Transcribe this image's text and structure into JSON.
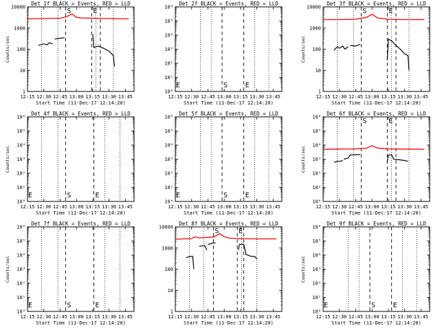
{
  "chart_data": [
    {
      "type": "line",
      "title": "Det 1f BLACK = Events, RED = LLD",
      "xlabel": "Start Time (11-Dec-17 12:14:20)",
      "ylabel": "Counts/sec",
      "yscale": "log",
      "xlim": [
        "12:15",
        "13:53"
      ],
      "ylim": [
        1,
        10000
      ],
      "x_ticks": [
        "12:15",
        "12:30",
        "12:45",
        "13:00",
        "13:15",
        "13:30",
        "13:45"
      ],
      "y_ticks": [
        "1",
        "10",
        "100",
        "1000",
        "10000"
      ],
      "vlines": [
        {
          "x": "12:50",
          "label": "S",
          "style": "dashed"
        },
        {
          "x": "13:14",
          "label": "E",
          "style": "dashed"
        },
        {
          "x": "13:22",
          "label": "",
          "style": "dashed"
        }
      ],
      "dotted_lines": [
        "12:28",
        "12:43",
        "13:18",
        "13:34"
      ],
      "markers_top": true,
      "series": [
        {
          "name": "RED = LLD",
          "color": "#ff0000",
          "points": [
            [
              "12:15",
              2700
            ],
            [
              "12:30",
              2800
            ],
            [
              "12:45",
              2900
            ],
            [
              "12:50",
              3300
            ],
            [
              "12:56",
              4600
            ],
            [
              "13:00",
              3200
            ],
            [
              "13:05",
              3000
            ],
            [
              "13:15",
              2900
            ],
            [
              "13:30",
              2800
            ],
            [
              "13:48",
              2700
            ]
          ]
        },
        {
          "name": "BLACK = Events",
          "color": "#000000",
          "segments": [
            [
              [
                "12:25",
                150
              ],
              [
                "12:30",
                180
              ],
              [
                "12:33",
                160
              ],
              [
                "12:35",
                200
              ],
              [
                "12:38",
                180
              ]
            ],
            [
              [
                "12:40",
                300
              ],
              [
                "12:45",
                330
              ],
              [
                "12:49",
                350
              ]
            ],
            [
              [
                "13:15",
                500
              ],
              [
                "13:16",
                120
              ],
              [
                "13:20",
                140
              ],
              [
                "13:25",
                110
              ],
              [
                "13:30",
                80
              ],
              [
                "13:34",
                50
              ],
              [
                "13:35",
                15
              ]
            ]
          ]
        }
      ]
    },
    {
      "type": "line",
      "title": "Det 2f BLACK = Events, RED = LLD",
      "xlabel": "Start Time (11-Dec-17 12:14:20)",
      "ylabel": "",
      "yscale": "log",
      "xlim": [
        "12:15",
        "13:53"
      ],
      "ylim": [
        1,
        1000000
      ],
      "x_ticks": [
        "12:15",
        "12:30",
        "12:45",
        "13:00",
        "13:15",
        "13:30",
        "13:45"
      ],
      "y_ticks": [
        "10⁰",
        "10¹",
        "10²",
        "10³",
        "10⁴",
        "10⁵",
        "10⁶"
      ],
      "vlines": [
        {
          "x": "12:58",
          "label": "S",
          "style": "dashed"
        },
        {
          "x": "13:18",
          "label": "E",
          "style": "dashed"
        }
      ],
      "dotted_lines": [
        "12:38",
        "12:48",
        "13:28",
        "13:41"
      ],
      "markers_top": false,
      "edge_label": "E",
      "series": []
    },
    {
      "type": "line",
      "title": "Det 3f BLACK = Events, RED = LLD",
      "xlabel": "Start Time (11-Dec-17 12:14:20)",
      "ylabel": "Counts/sec",
      "yscale": "log",
      "xlim": [
        "12:15",
        "13:53"
      ],
      "ylim": [
        1,
        10000
      ],
      "x_ticks": [
        "12:15",
        "12:30",
        "12:45",
        "13:00",
        "13:15",
        "13:30",
        "13:45"
      ],
      "y_ticks": [
        "1",
        "10",
        "100",
        "1000",
        "10000"
      ],
      "vlines": [
        {
          "x": "12:50",
          "label": "S",
          "style": "dashed"
        },
        {
          "x": "13:14",
          "label": "E",
          "style": "dashed"
        },
        {
          "x": "13:22",
          "label": "",
          "style": "dashed"
        }
      ],
      "dotted_lines": [
        "12:28",
        "12:43",
        "13:18",
        "13:34"
      ],
      "markers_top": true,
      "series": [
        {
          "name": "RED = LLD",
          "color": "#ff0000",
          "points": [
            [
              "12:15",
              2500
            ],
            [
              "12:30",
              2500
            ],
            [
              "12:45",
              2600
            ],
            [
              "12:55",
              3200
            ],
            [
              "13:00",
              4500
            ],
            [
              "13:05",
              3000
            ],
            [
              "13:15",
              2600
            ],
            [
              "13:30",
              2500
            ],
            [
              "13:48",
              2500
            ]
          ]
        },
        {
          "name": "BLACK = Events",
          "color": "#000000",
          "segments": [
            [
              [
                "12:25",
                90
              ],
              [
                "12:28",
                130
              ],
              [
                "12:30",
                110
              ],
              [
                "12:33",
                140
              ],
              [
                "12:35",
                100
              ],
              [
                "12:38",
                130
              ]
            ],
            [
              [
                "12:40",
                150
              ],
              [
                "12:45",
                140
              ],
              [
                "12:49",
                170
              ]
            ],
            [
              [
                "13:14",
                30
              ],
              [
                "13:15",
                300
              ],
              [
                "13:18",
                250
              ],
              [
                "13:22",
                150
              ],
              [
                "13:26",
                100
              ],
              [
                "13:30",
                60
              ],
              [
                "13:33",
                50
              ],
              [
                "13:34",
                10
              ]
            ]
          ]
        }
      ]
    },
    {
      "type": "line",
      "title": "Det 4f BLACK = Events, RED = LLD",
      "xlabel": "Start Time (11-Dec-17 12:14:20)",
      "ylabel": "Counts/sec",
      "yscale": "log",
      "xlim": [
        "12:15",
        "13:53"
      ],
      "ylim": [
        1,
        1000000
      ],
      "x_ticks": [
        "12:15",
        "12:30",
        "12:45",
        "13:00",
        "13:15",
        "13:30",
        "13:45"
      ],
      "y_ticks": [
        "10⁰",
        "10¹",
        "10²",
        "10³",
        "10⁴",
        "10⁵",
        "10⁶"
      ],
      "vlines": [
        {
          "x": "12:50",
          "label": "S",
          "style": "dashed"
        },
        {
          "x": "13:16",
          "label": "E",
          "style": "dashed"
        }
      ],
      "dotted_lines": [
        "12:28",
        "12:43",
        "13:26",
        "13:40"
      ],
      "markers_top": false,
      "edge_label": "E",
      "series": []
    },
    {
      "type": "line",
      "title": "Det 5f BLACK = Events, RED = LLD",
      "xlabel": "Start Time (11-Dec-17 12:14:20)",
      "ylabel": "",
      "yscale": "log",
      "xlim": [
        "12:15",
        "13:53"
      ],
      "ylim": [
        1,
        1000000
      ],
      "x_ticks": [
        "12:15",
        "12:30",
        "12:45",
        "13:00",
        "13:15",
        "13:30",
        "13:45"
      ],
      "y_ticks": [
        "10⁰",
        "10¹",
        "10²",
        "10³",
        "10⁴",
        "10⁵",
        "10⁶"
      ],
      "vlines": [
        {
          "x": "12:58",
          "label": "S",
          "style": "dashed"
        },
        {
          "x": "13:18",
          "label": "E",
          "style": "dashed"
        }
      ],
      "dotted_lines": [
        "12:38",
        "12:48",
        "13:28",
        "13:41"
      ],
      "markers_top": false,
      "edge_label": "E",
      "series": []
    },
    {
      "type": "line",
      "title": "Det 6f BLACK = Events, RED = LLD",
      "xlabel": "Start Time (11-Dec-17 12:14:20)",
      "ylabel": "Counts/sec",
      "yscale": "log",
      "xlim": [
        "12:15",
        "13:53"
      ],
      "ylim": [
        1,
        1000000
      ],
      "x_ticks": [
        "12:15",
        "12:30",
        "12:45",
        "13:00",
        "13:15",
        "13:30",
        "13:45"
      ],
      "y_ticks": [
        "10⁰",
        "10¹",
        "10²",
        "10³",
        "10⁴",
        "10⁵",
        "10⁶"
      ],
      "vlines": [
        {
          "x": "12:50",
          "label": "S",
          "style": "dashed"
        },
        {
          "x": "13:14",
          "label": "E",
          "style": "dashed"
        },
        {
          "x": "13:22",
          "label": "",
          "style": "dashed"
        }
      ],
      "dotted_lines": [
        "12:28",
        "12:43",
        "13:18",
        "13:34"
      ],
      "markers_top": true,
      "series": [
        {
          "name": "RED = LLD",
          "color": "#ff0000",
          "points": [
            [
              "12:15",
              5000
            ],
            [
              "12:30",
              5200
            ],
            [
              "12:45",
              5300
            ],
            [
              "12:55",
              6000
            ],
            [
              "13:00",
              9000
            ],
            [
              "13:05",
              6200
            ],
            [
              "13:15",
              5300
            ],
            [
              "13:30",
              5200
            ],
            [
              "13:48",
              5000
            ]
          ]
        },
        {
          "name": "BLACK = Events",
          "color": "#000000",
          "segments": [
            [
              [
                "12:25",
                600
              ],
              [
                "12:28",
                700
              ],
              [
                "12:30",
                700
              ],
              [
                "12:33",
                800
              ]
            ],
            [
              [
                "12:34",
                1000
              ],
              [
                "12:38",
                1200
              ],
              [
                "12:40",
                2000
              ],
              [
                "12:45",
                2100
              ],
              [
                "12:49",
                2100
              ]
            ],
            [
              [
                "13:14",
                600
              ],
              [
                "13:15",
                2000
              ],
              [
                "13:18",
                2000
              ],
              [
                "13:20",
                1000
              ],
              [
                "13:25",
                900
              ],
              [
                "13:30",
                800
              ],
              [
                "13:33",
                700
              ]
            ]
          ]
        }
      ]
    },
    {
      "type": "line",
      "title": "Det 7f BLACK = Events, RED = LLD",
      "xlabel": "Start Time (11-Dec-17 12:14:20)",
      "ylabel": "Counts/sec",
      "yscale": "log",
      "xlim": [
        "12:15",
        "13:53"
      ],
      "ylim": [
        1,
        1000000
      ],
      "x_ticks": [
        "12:15",
        "12:30",
        "12:45",
        "13:00",
        "13:15",
        "13:30",
        "13:45"
      ],
      "y_ticks": [
        "10⁰",
        "10¹",
        "10²",
        "10³",
        "10⁴",
        "10⁵",
        "10⁶"
      ],
      "vlines": [
        {
          "x": "12:50",
          "label": "S",
          "style": "dashed"
        },
        {
          "x": "13:16",
          "label": "E",
          "style": "dashed"
        }
      ],
      "dotted_lines": [
        "12:28",
        "12:43",
        "13:26",
        "13:40"
      ],
      "markers_top": false,
      "edge_label": "E",
      "series": []
    },
    {
      "type": "line",
      "title": "Det 8f BLACK = Events, RED = LLD",
      "xlabel": "Start Time (11-Dec-17 12:14:20)",
      "ylabel": "",
      "yscale": "log",
      "xlim": [
        "12:15",
        "13:53"
      ],
      "ylim": [
        1,
        10000
      ],
      "x_ticks": [
        "12:15",
        "12:30",
        "12:45",
        "13:00",
        "13:15",
        "13:30",
        "13:45"
      ],
      "y_ticks": [
        "1",
        "10",
        "100",
        "1000",
        "10000"
      ],
      "vlines": [
        {
          "x": "12:50",
          "label": "S",
          "style": "dashed"
        },
        {
          "x": "13:12",
          "label": "E",
          "style": "dashed"
        },
        {
          "x": "13:18",
          "label": "",
          "style": "dashed"
        }
      ],
      "dotted_lines": [
        "12:28",
        "12:41",
        "13:16",
        "13:30"
      ],
      "markers_top": true,
      "series": [
        {
          "name": "RED = LLD",
          "color": "#ff0000",
          "points": [
            [
              "12:15",
              2600
            ],
            [
              "12:30",
              2800
            ],
            [
              "12:33",
              3400
            ],
            [
              "12:37",
              3000
            ],
            [
              "12:45",
              3200
            ],
            [
              "12:50",
              3300
            ],
            [
              "12:56",
              4800
            ],
            [
              "13:00",
              3400
            ],
            [
              "13:05",
              2900
            ],
            [
              "13:15",
              2800
            ],
            [
              "13:30",
              2700
            ],
            [
              "13:48",
              2700
            ]
          ]
        },
        {
          "name": "BLACK = Events",
          "color": "#000000",
          "segments": [
            [
              [
                "12:25",
                350
              ],
              [
                "12:28",
                400
              ],
              [
                "12:31",
                400
              ],
              [
                "12:32",
                100
              ]
            ],
            [
              [
                "12:37",
                1200
              ],
              [
                "12:42",
                1300
              ],
              [
                "12:44",
                800
              ]
            ],
            [
              [
                "12:45",
                1500
              ],
              [
                "12:48",
                1600
              ],
              [
                "12:50",
                1800
              ],
              [
                "12:52",
                1700
              ]
            ],
            [
              [
                "13:13",
                800
              ],
              [
                "13:14",
                1500
              ],
              [
                "13:18",
                1500
              ],
              [
                "13:20",
                500
              ],
              [
                "13:25",
                400
              ],
              [
                "13:28",
                400
              ],
              [
                "13:30",
                300
              ]
            ]
          ]
        }
      ]
    },
    {
      "type": "line",
      "title": "Det 9f BLACK = Events, RED = LLD",
      "xlabel": "Start Time (11-Dec-17 12:14:20)",
      "ylabel": "Counts/sec",
      "yscale": "log",
      "xlim": [
        "12:15",
        "13:53"
      ],
      "ylim": [
        1,
        1000000
      ],
      "x_ticks": [
        "12:15",
        "12:30",
        "12:45",
        "13:00",
        "13:15",
        "13:30",
        "13:45"
      ],
      "y_ticks": [
        "10⁰",
        "10¹",
        "10²",
        "10³",
        "10⁴",
        "10⁵",
        "10⁶"
      ],
      "vlines": [
        {
          "x": "12:58",
          "label": "S",
          "style": "dashed"
        },
        {
          "x": "13:18",
          "label": "E",
          "style": "dashed"
        }
      ],
      "dotted_lines": [
        "12:38",
        "12:48",
        "13:28",
        "13:41"
      ],
      "markers_top": false,
      "edge_label": "E",
      "series": []
    }
  ]
}
